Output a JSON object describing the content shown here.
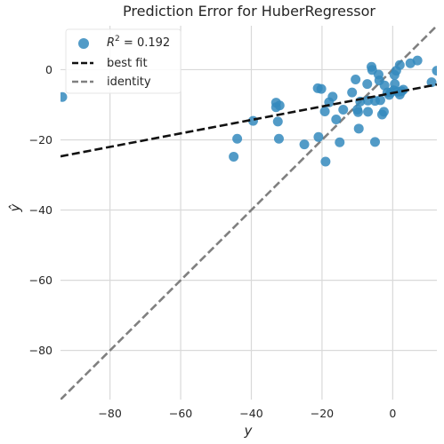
{
  "chart_data": {
    "type": "scatter",
    "title": "Prediction Error for HuberRegressor",
    "xlabel": "y",
    "ylabel": "ŷ",
    "xlim": [
      -94,
      12.5
    ],
    "ylim": [
      -94,
      12.5
    ],
    "xticks": [
      -80,
      -60,
      -40,
      -20,
      0
    ],
    "yticks": [
      0,
      -20,
      -40,
      -60,
      -80
    ],
    "xtick_labels": [
      "−80",
      "−60",
      "−40",
      "−20",
      "0"
    ],
    "ytick_labels": [
      "0",
      "−20",
      "−40",
      "−60",
      "−80"
    ],
    "grid": true,
    "legend_position": "top-left",
    "colors": {
      "points": "#348ABD",
      "best_fit": "#111111",
      "identity": "#808080",
      "grid": "#d9d9d9",
      "background": "#ffffff"
    },
    "series": [
      {
        "name": "R² = 0.192",
        "legend_prefix": "R",
        "legend_sup": "2",
        "legend_suffix": " = 0.192",
        "kind": "points",
        "points": [
          [
            -93.5,
            -7.8
          ],
          [
            -45,
            -24.8
          ],
          [
            -44,
            -19.7
          ],
          [
            -39.5,
            -14.6
          ],
          [
            -33,
            -9.4
          ],
          [
            -33,
            -10.7
          ],
          [
            -32.5,
            -14.8
          ],
          [
            -32.2,
            -19.7
          ],
          [
            -32,
            -10.2
          ],
          [
            -25,
            -21.3
          ],
          [
            -21.2,
            -5.3
          ],
          [
            -21,
            -19.2
          ],
          [
            -20.2,
            -5.5
          ],
          [
            -19.2,
            -11.9
          ],
          [
            -19,
            -26.2
          ],
          [
            -18,
            -9.3
          ],
          [
            -17,
            -7.7
          ],
          [
            -16,
            -14.2
          ],
          [
            -15,
            -20.7
          ],
          [
            -14,
            -11.4
          ],
          [
            -11.5,
            -6.5
          ],
          [
            -10.5,
            -2.8
          ],
          [
            -10,
            -11.4
          ],
          [
            -9.8,
            -12.1
          ],
          [
            -9.6,
            -16.8
          ],
          [
            -9.2,
            -9.1
          ],
          [
            -7.2,
            -4.1
          ],
          [
            -7,
            -8.8
          ],
          [
            -7,
            -12
          ],
          [
            -6,
            0.8
          ],
          [
            -5.8,
            -0.1
          ],
          [
            -5,
            -8.9
          ],
          [
            -5,
            -20.6
          ],
          [
            -4,
            -1.4
          ],
          [
            -3.8,
            -3.1
          ],
          [
            -3.5,
            -8.7
          ],
          [
            -3,
            -12.8
          ],
          [
            -2.5,
            -12
          ],
          [
            -2.3,
            -4.5
          ],
          [
            -1.5,
            -6.5
          ],
          [
            -1,
            -7.2
          ],
          [
            -0.5,
            -6.5
          ],
          [
            0.3,
            -5.9
          ],
          [
            0.5,
            -1.5
          ],
          [
            0.6,
            -4.1
          ],
          [
            1,
            -0.3
          ],
          [
            1.5,
            -6.3
          ],
          [
            2,
            1.3
          ],
          [
            2.5,
            -6.2
          ],
          [
            3,
            -5.7
          ],
          [
            5,
            1.8
          ],
          [
            7,
            2.6
          ],
          [
            11,
            -3.6
          ],
          [
            12.5,
            -0.3
          ],
          [
            2,
            -7.1
          ]
        ]
      },
      {
        "name": "best fit",
        "kind": "line",
        "dash": "dashed",
        "slope": 0.192,
        "intercept": -6.65
      },
      {
        "name": "identity",
        "kind": "line",
        "dash": "dashed",
        "slope": 1,
        "intercept": 0
      }
    ]
  }
}
